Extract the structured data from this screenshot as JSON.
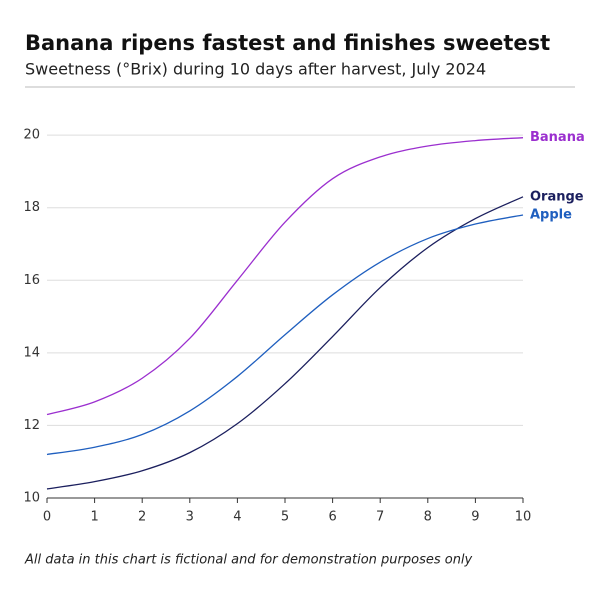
{
  "chart_data": {
    "type": "line",
    "title": "Banana ripens fastest and finishes sweetest",
    "subtitle": "Sweetness (°Brix) during 10 days after harvest, July 2024",
    "note": "All data in this chart is fictional and for demonstration purposes only",
    "x": [
      0,
      1,
      2,
      3,
      4,
      5,
      6,
      7,
      8,
      9,
      10
    ],
    "series": [
      {
        "name": "Banana",
        "color": "#9b2fcf",
        "values": [
          12.3,
          12.65,
          13.3,
          14.4,
          16.0,
          17.6,
          18.8,
          19.4,
          19.7,
          19.85,
          19.93
        ]
      },
      {
        "name": "Orange",
        "color": "#1b1f5e",
        "values": [
          10.25,
          10.45,
          10.75,
          11.25,
          12.05,
          13.15,
          14.45,
          15.8,
          16.9,
          17.7,
          18.3
        ]
      },
      {
        "name": "Apple",
        "color": "#1f5fbf",
        "values": [
          11.2,
          11.4,
          11.75,
          12.4,
          13.35,
          14.5,
          15.6,
          16.5,
          17.15,
          17.55,
          17.8
        ]
      }
    ],
    "xlim": [
      0,
      10
    ],
    "xticks": [
      0,
      1,
      2,
      3,
      4,
      5,
      6,
      7,
      8,
      9,
      10
    ],
    "ylim": [
      10,
      20.5
    ],
    "yticks": [
      10,
      12,
      14,
      16,
      18,
      20
    ],
    "grid": true
  }
}
